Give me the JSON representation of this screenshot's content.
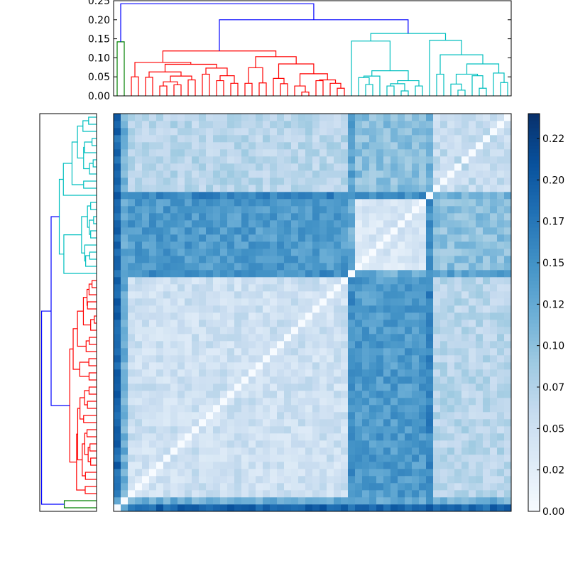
{
  "chart_data": {
    "type": "heatmap",
    "title": "",
    "leaf_count": 56,
    "groups": [
      {
        "name": "green",
        "from": 0,
        "to": 1,
        "color": "#008000"
      },
      {
        "name": "red",
        "from": 2,
        "to": 32,
        "color": "#ff0000"
      },
      {
        "name": "cyan",
        "from": 33,
        "to": 55,
        "color": "#00bfbf"
      }
    ],
    "link_color_above_threshold": "#0000ff",
    "dendrogram_tree": [
      [
        0,
        1,
        0.142
      ],
      [
        [
          [
            [
              2,
              3,
              0.05
            ],
            [
              [
                [
                  4,
                  5,
                  0.049
                ],
                [
                  [
                    [
                      6,
                      7,
                      0.026
                    ],
                    [
                      8,
                      9,
                      0.029
                    ],
                    0.037
                  ],
                  [
                    10,
                    11,
                    0.042
                  ],
                  0.052
                ],
                0.063
              ],
              [
                [
                  12,
                  13,
                  0.057
                ],
                [
                  [
                    14,
                    15,
                    0.04
                  ],
                  [
                    16,
                    17,
                    0.033
                  ],
                  0.053
                ],
                0.073
              ],
              0.083
            ],
            0.088
          ],
          [
            [
              [
                18,
                19,
                0.033
              ],
              [
                20,
                21,
                0.034
              ],
              0.074
            ],
            [
              [
                22,
                [
                  23,
                  24,
                  0.032
                ],
                0.046
              ],
              [
                [
                  25,
                  [
                    26,
                    27,
                    0.01
                  ],
                  0.026
                ],
                [
                  [
                    28,
                    29,
                    0.04
                  ],
                  [
                    30,
                    [
                      31,
                      32,
                      0.02
                    ],
                    0.033
                  ],
                  0.042
                ],
                0.058
              ],
              0.084
            ],
            0.103
          ],
          0.118
        ],
        [
          [
            33,
            [
              [
                [
                  34,
                  [
                    35,
                    36,
                    0.03
                  ],
                  0.048
                ],
                37,
                0.052
              ],
              [
                [
                  [
                    38,
                    39,
                    0.026
                  ],
                  [
                    40,
                    41,
                    0.013
                  ],
                  0.032
                ],
                [
                  42,
                  43,
                  0.026
                ],
                0.04
              ],
              0.066
            ],
            0.144
          ],
          [
            44,
            [
              [
                45,
                46,
                0.057
              ],
              [
                [
                  [
                    47,
                    [
                      48,
                      49,
                      0.015
                    ],
                    0.031
                  ],
                  [
                    50,
                    [
                      51,
                      52,
                      0.02
                    ],
                    0.053
                  ],
                  0.057
                ],
                [
                  53,
                  [
                    54,
                    55,
                    0.035
                  ],
                  0.06
                ],
                0.084
              ],
              0.108
            ],
            0.146
          ],
          0.164
        ],
        0.2
      ],
      0.242
    ],
    "dendrogram_yticks": [
      "0.00",
      "0.05",
      "0.10",
      "0.15",
      "0.20",
      "0.25"
    ],
    "dendrogram_ytick_values": [
      0,
      0.05,
      0.1,
      0.15,
      0.2,
      0.25
    ],
    "dendrogram_ylim": [
      0,
      0.25
    ],
    "matrix_blocks": {
      "segments": [
        [
          0,
          0
        ],
        [
          1,
          1
        ],
        [
          2,
          32
        ],
        [
          33,
          33
        ],
        [
          34,
          43
        ],
        [
          44,
          44
        ],
        [
          45,
          55
        ]
      ],
      "means": [
        [
          0.0,
          0.14,
          0.19,
          0.17,
          0.19,
          0.2,
          0.19
        ],
        [
          0.14,
          0.0,
          0.12,
          0.13,
          0.13,
          0.15,
          0.12
        ],
        [
          0.19,
          0.12,
          0.05,
          0.15,
          0.14,
          0.16,
          0.07
        ],
        [
          0.17,
          0.13,
          0.15,
          0.0,
          0.12,
          0.15,
          0.13
        ],
        [
          0.19,
          0.13,
          0.14,
          0.12,
          0.04,
          0.15,
          0.1
        ],
        [
          0.2,
          0.15,
          0.16,
          0.15,
          0.15,
          0.0,
          0.12
        ],
        [
          0.19,
          0.12,
          0.07,
          0.13,
          0.1,
          0.12,
          0.06
        ]
      ],
      "variation": 0.02
    },
    "colormap": [
      "#f7fbff",
      "#deebf7",
      "#c6dbef",
      "#9ecae1",
      "#6baed6",
      "#4292c6",
      "#2171b5",
      "#08519c",
      "#08306b"
    ],
    "vlim": [
      0,
      0.24
    ],
    "colorbar_ticks": [
      "0.00",
      "0.02",
      "0.05",
      "0.07",
      "0.10",
      "0.12",
      "0.15",
      "0.17",
      "0.20",
      "0.22"
    ],
    "colorbar_tick_values": [
      0,
      0.025,
      0.05,
      0.075,
      0.1,
      0.125,
      0.15,
      0.175,
      0.2,
      0.225
    ]
  }
}
